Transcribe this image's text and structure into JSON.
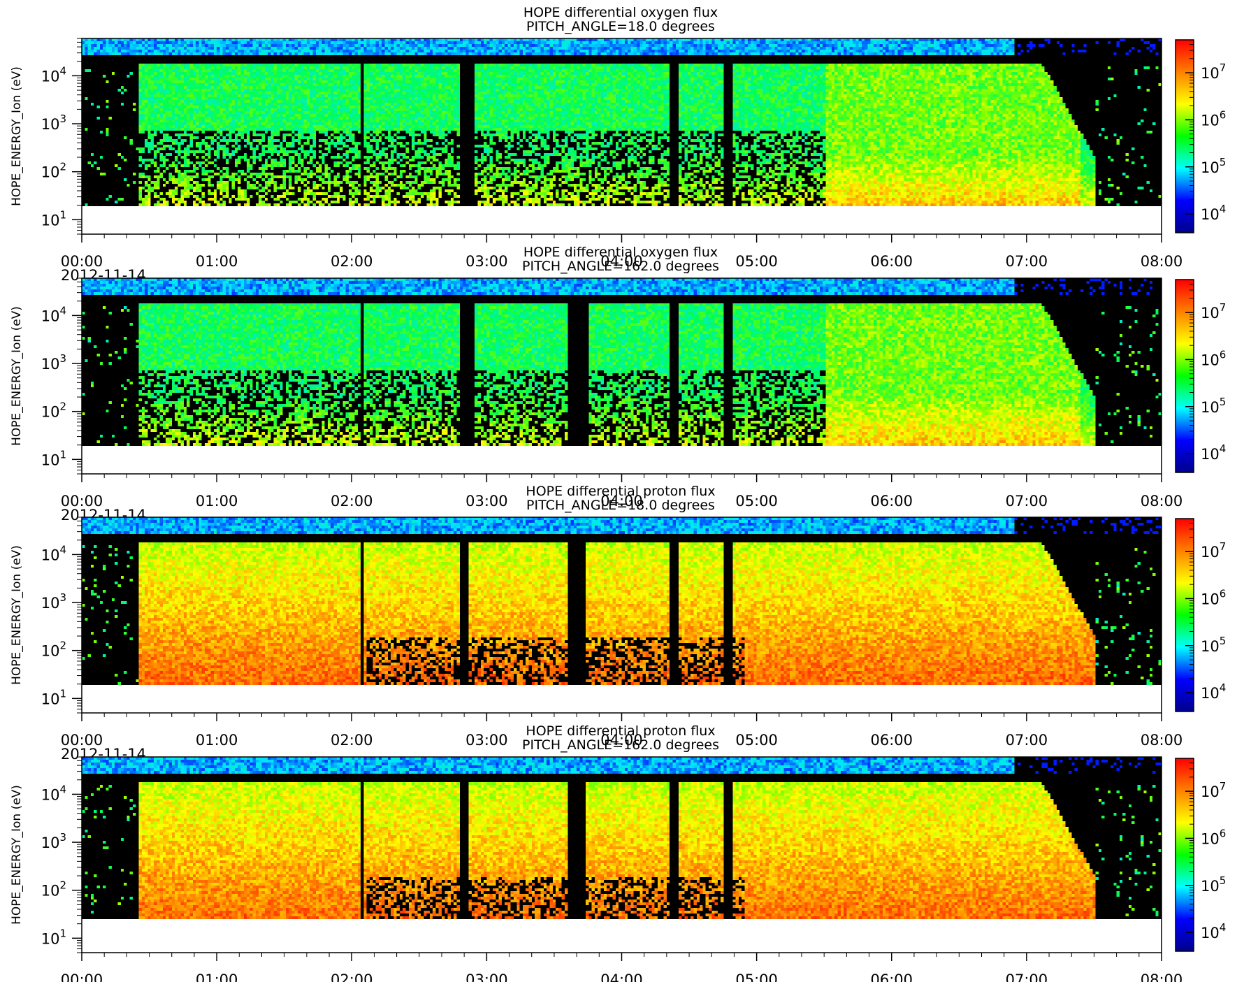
{
  "chart_data": [
    {
      "type": "heatmap",
      "title": "HOPE differential oxygen flux",
      "subtitle": "PITCH_ANGLE=18.0 degrees",
      "ylabel": "HOPE_ENERGY_Ion (eV)",
      "x_ticks": [
        "00:00",
        "01:00",
        "02:00",
        "03:00",
        "04:00",
        "05:00",
        "06:00",
        "07:00",
        "08:00"
      ],
      "x_date": "2012-11-14",
      "xlim": [
        "00:00",
        "08:00"
      ],
      "y_scale": "log",
      "y_ticks": [
        "10^1",
        "10^2",
        "10^3",
        "10^4"
      ],
      "ylim": [
        5,
        60000
      ],
      "colorbar": {
        "scale": "log",
        "ticks": [
          "10^4",
          "10^5",
          "10^6",
          "10^7"
        ],
        "colors": [
          "#00008b",
          "#0000ff",
          "#00ffff",
          "#00ff00",
          "#ffff00",
          "#ff8000",
          "#ff0000"
        ]
      },
      "species": "oxygen",
      "pitch_angle": 18.0,
      "data_min_energy": 18,
      "gaps_hours": [
        [
          2.05,
          2.08
        ],
        [
          2.8,
          2.9
        ],
        [
          4.35,
          4.42
        ],
        [
          4.75,
          4.8
        ]
      ]
    },
    {
      "type": "heatmap",
      "title": "HOPE differential oxygen flux",
      "subtitle": "PITCH_ANGLE=162.0 degrees",
      "ylabel": "HOPE_ENERGY_Ion (eV)",
      "x_ticks": [
        "00:00",
        "01:00",
        "02:00",
        "03:00",
        "04:00",
        "05:00",
        "06:00",
        "07:00",
        "08:00"
      ],
      "x_date": "2012-11-14",
      "xlim": [
        "00:00",
        "08:00"
      ],
      "y_scale": "log",
      "y_ticks": [
        "10^1",
        "10^2",
        "10^3",
        "10^4"
      ],
      "ylim": [
        5,
        60000
      ],
      "colorbar": {
        "scale": "log",
        "ticks": [
          "10^4",
          "10^5",
          "10^6",
          "10^7"
        ],
        "colors": [
          "#00008b",
          "#0000ff",
          "#00ffff",
          "#00ff00",
          "#ffff00",
          "#ff8000",
          "#ff0000"
        ]
      },
      "species": "oxygen",
      "pitch_angle": 162.0,
      "data_min_energy": 18,
      "gaps_hours": [
        [
          2.05,
          2.08
        ],
        [
          2.8,
          2.9
        ],
        [
          3.6,
          3.75
        ],
        [
          4.35,
          4.42
        ],
        [
          4.75,
          4.8
        ]
      ]
    },
    {
      "type": "heatmap",
      "title": "HOPE differential proton flux",
      "subtitle": "PITCH_ANGLE=18.0 degrees",
      "ylabel": "HOPE_ENERGY_Ion (eV)",
      "x_ticks": [
        "00:00",
        "01:00",
        "02:00",
        "03:00",
        "04:00",
        "05:00",
        "06:00",
        "07:00",
        "08:00"
      ],
      "x_date": "2012-11-14",
      "xlim": [
        "00:00",
        "08:00"
      ],
      "y_scale": "log",
      "y_ticks": [
        "10^1",
        "10^2",
        "10^3",
        "10^4"
      ],
      "ylim": [
        5,
        60000
      ],
      "colorbar": {
        "scale": "log",
        "ticks": [
          "10^4",
          "10^5",
          "10^6",
          "10^7"
        ],
        "colors": [
          "#00008b",
          "#0000ff",
          "#00ffff",
          "#00ff00",
          "#ffff00",
          "#ff8000",
          "#ff0000"
        ]
      },
      "species": "proton",
      "pitch_angle": 18.0,
      "data_min_energy": 18,
      "gaps_hours": [
        [
          2.05,
          2.08
        ],
        [
          2.8,
          2.85
        ],
        [
          3.6,
          3.72
        ],
        [
          4.35,
          4.42
        ],
        [
          4.75,
          4.8
        ]
      ]
    },
    {
      "type": "heatmap",
      "title": "HOPE differential proton flux",
      "subtitle": "PITCH_ANGLE=162.0 degrees",
      "ylabel": "HOPE_ENERGY_Ion (eV)",
      "x_ticks": [
        "00:00",
        "01:00",
        "02:00",
        "03:00",
        "04:00",
        "05:00",
        "06:00",
        "07:00",
        "08:00"
      ],
      "x_date": "2012-11-14",
      "xlim": [
        "00:00",
        "08:00"
      ],
      "y_scale": "log",
      "y_ticks": [
        "10^1",
        "10^2",
        "10^3",
        "10^4"
      ],
      "ylim": [
        5,
        60000
      ],
      "colorbar": {
        "scale": "log",
        "ticks": [
          "10^4",
          "10^5",
          "10^6",
          "10^7"
        ],
        "colors": [
          "#00008b",
          "#0000ff",
          "#00ffff",
          "#00ff00",
          "#ffff00",
          "#ff8000",
          "#ff0000"
        ]
      },
      "species": "proton",
      "pitch_angle": 162.0,
      "data_min_energy": 25,
      "gaps_hours": [
        [
          2.05,
          2.08
        ],
        [
          2.8,
          2.85
        ],
        [
          3.6,
          3.72
        ],
        [
          4.35,
          4.42
        ],
        [
          4.75,
          4.8
        ]
      ]
    }
  ]
}
